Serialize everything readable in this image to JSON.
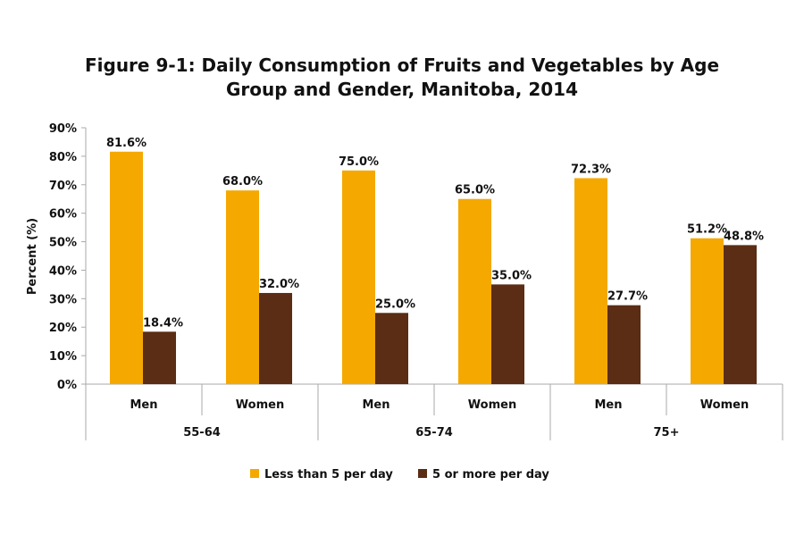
{
  "chart_data": {
    "type": "bar",
    "title_lines": [
      "Figure 9-1: Daily Consumption of Fruits and Vegetables by Age",
      "Group and Gender, Manitoba, 2014"
    ],
    "ylabel": "Percent (%)",
    "xlabel": "",
    "ylim": [
      0,
      90
    ],
    "yticks": [
      "0%",
      "10%",
      "20%",
      "30%",
      "40%",
      "50%",
      "60%",
      "70%",
      "80%",
      "90%"
    ],
    "groups": [
      {
        "label": "55-64",
        "categories": [
          "Men",
          "Women"
        ]
      },
      {
        "label": "65-74",
        "categories": [
          "Men",
          "Women"
        ]
      },
      {
        "label": "75+",
        "categories": [
          "Men",
          "Women"
        ]
      }
    ],
    "series": [
      {
        "name": "Less than 5 per day",
        "color": "#F5A800",
        "values": [
          81.6,
          68.0,
          75.0,
          65.0,
          72.3,
          51.2
        ],
        "labels": [
          "81.6%",
          "68.0%",
          "75.0%",
          "65.0%",
          "72.3%",
          "51.2%"
        ]
      },
      {
        "name": "5 or more per day",
        "color": "#5A2D14",
        "values": [
          18.4,
          32.0,
          25.0,
          35.0,
          27.7,
          48.8
        ],
        "labels": [
          "18.4%",
          "32.0%",
          "25.0%",
          "35.0%",
          "27.7%",
          "48.8%"
        ]
      }
    ],
    "grid": false,
    "legend_position": "bottom"
  }
}
